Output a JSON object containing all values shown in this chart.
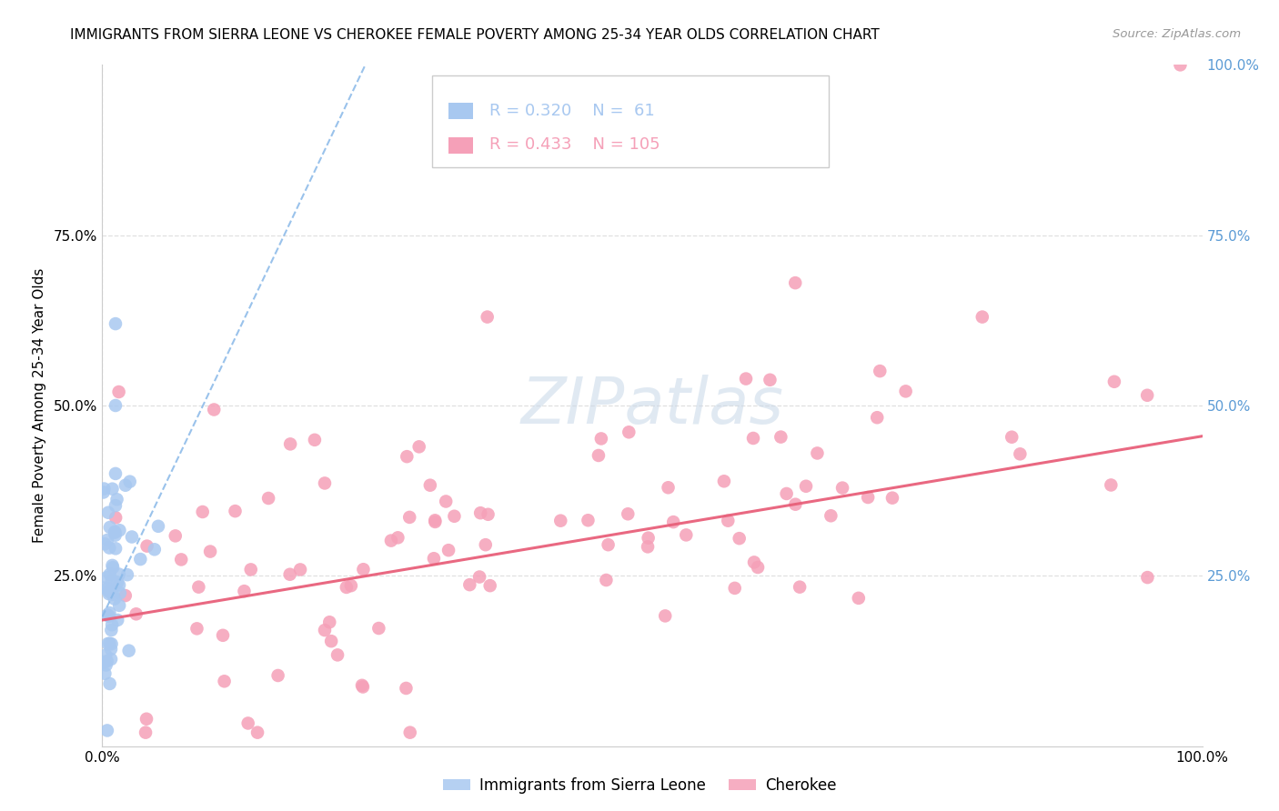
{
  "title": "IMMIGRANTS FROM SIERRA LEONE VS CHEROKEE FEMALE POVERTY AMONG 25-34 YEAR OLDS CORRELATION CHART",
  "source": "Source: ZipAtlas.com",
  "ylabel": "Female Poverty Among 25-34 Year Olds",
  "xlim": [
    0,
    1.0
  ],
  "ylim": [
    0,
    1.0
  ],
  "sierra_leone_color": "#a8c8f0",
  "cherokee_color": "#f5a0b8",
  "sierra_leone_trendline_color": "#88b8e8",
  "cherokee_trendline_color": "#e8607a",
  "background_color": "#ffffff",
  "grid_color": "#e0e0e0",
  "title_fontsize": 11,
  "axis_label_fontsize": 11,
  "tick_fontsize": 11,
  "right_tick_color": "#5b9bd5",
  "watermark_text": "ZIPatlas",
  "legend_r1": "R = 0.320",
  "legend_n1": "61",
  "legend_r2": "R = 0.433",
  "legend_n2": "105",
  "bottom_legend1": "Immigrants from Sierra Leone",
  "bottom_legend2": "Cherokee",
  "sl_trend_x": [
    0.0,
    0.245
  ],
  "sl_trend_y": [
    0.19,
    1.02
  ],
  "ch_trend_x": [
    0.0,
    1.0
  ],
  "ch_trend_y": [
    0.185,
    0.455
  ]
}
